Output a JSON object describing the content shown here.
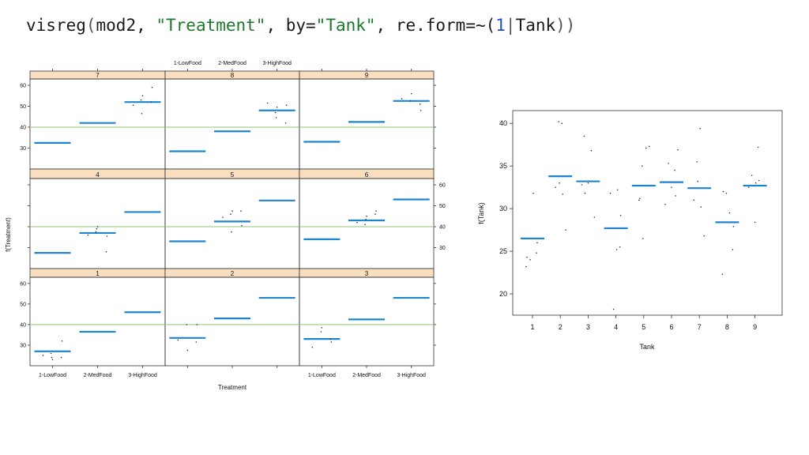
{
  "code": {
    "fn": "visreg",
    "open": "(",
    "arg1": "mod2, ",
    "str1": "\"Treatment\"",
    "sep1": ", by=",
    "str2": "\"Tank\"",
    "sep2": ", re.form=~(",
    "num1": "1",
    "bar": "|",
    "term": "Tank",
    "close": "))"
  },
  "colors": {
    "fit_line": "#1f84cf",
    "points": "#333333",
    "ref_line": "#a9cf8f",
    "strip_bg": "#f9dfc0",
    "frame": "#333333"
  },
  "chart_data": [
    {
      "type": "line",
      "layout": "trellis 3x3",
      "xlabel": "Treatment",
      "ylabel": "f(Treatment)",
      "categories": [
        "1-LowFood",
        "2-MedFood",
        "3-HighFood"
      ],
      "ylim": [
        20,
        63
      ],
      "yticks": [
        30,
        40,
        50,
        60
      ],
      "reference_line": 40,
      "panels": [
        {
          "tank": "7",
          "fit": [
            32.5,
            42,
            52
          ],
          "points": [
            [
              2,
              50.5
            ],
            [
              2,
              55
            ],
            [
              2,
              59
            ],
            [
              2,
              46.5
            ],
            [
              2,
              52
            ],
            [
              2,
              53
            ]
          ]
        },
        {
          "tank": "8",
          "fit": [
            28.5,
            38,
            48
          ],
          "points": [
            [
              2,
              51.5
            ],
            [
              2,
              49.5
            ],
            [
              2,
              50.5
            ],
            [
              2,
              44.5
            ],
            [
              2,
              42
            ],
            [
              2,
              47
            ]
          ]
        },
        {
          "tank": "9",
          "fit": [
            33,
            42.5,
            52.5
          ],
          "points": [
            [
              2,
              53.5
            ],
            [
              2,
              56
            ],
            [
              2,
              48
            ],
            [
              2,
              52.5
            ],
            [
              2,
              51
            ]
          ]
        },
        {
          "tank": "4",
          "fit": [
            27.5,
            37,
            47
          ],
          "points": [
            [
              1,
              36
            ],
            [
              1,
              40
            ],
            [
              1,
              35.5
            ],
            [
              1,
              39
            ],
            [
              1,
              28
            ],
            [
              1,
              37.5
            ]
          ]
        },
        {
          "tank": "5",
          "fit": [
            33,
            42.5,
            52.5
          ],
          "points": [
            [
              1,
              44.5
            ],
            [
              1,
              47.5
            ],
            [
              1,
              40.5
            ],
            [
              1,
              37.5
            ],
            [
              1,
              47.5
            ],
            [
              1,
              46
            ]
          ]
        },
        {
          "tank": "6",
          "fit": [
            34,
            43,
            53
          ],
          "points": [
            [
              1,
              42
            ],
            [
              1,
              45
            ],
            [
              1,
              47.5
            ],
            [
              1,
              43.5
            ],
            [
              1,
              46
            ],
            [
              1,
              41
            ]
          ]
        },
        {
          "tank": "1",
          "fit": [
            27,
            36.5,
            46
          ],
          "points": [
            [
              0,
              25
            ],
            [
              0,
              23
            ],
            [
              0,
              32
            ],
            [
              0,
              24
            ],
            [
              0,
              24
            ],
            [
              0,
              26
            ]
          ]
        },
        {
          "tank": "2",
          "fit": [
            33.5,
            43,
            53
          ],
          "points": [
            [
              0,
              32.5
            ],
            [
              0,
              27.5
            ],
            [
              0,
              40
            ],
            [
              0,
              40
            ],
            [
              0,
              31.5
            ]
          ]
        },
        {
          "tank": "3",
          "fit": [
            33,
            42.5,
            53
          ],
          "points": [
            [
              0,
              29
            ],
            [
              0,
              38.5
            ],
            [
              0,
              31.5
            ],
            [
              0,
              36.5
            ],
            [
              0,
              33
            ]
          ]
        }
      ]
    },
    {
      "type": "scatter",
      "xlabel": "Tank",
      "ylabel": "f(Tank)",
      "categories": [
        "1",
        "2",
        "3",
        "4",
        "5",
        "6",
        "7",
        "8",
        "9"
      ],
      "ylim": [
        17.5,
        41.5
      ],
      "yticks": [
        20,
        25,
        30,
        35,
        40
      ],
      "fit": [
        26.5,
        33.8,
        33.2,
        27.7,
        32.7,
        33.1,
        32.4,
        28.4,
        32.7
      ],
      "points": [
        [
          1,
          23.2
        ],
        [
          1,
          24.8
        ],
        [
          1,
          31.8
        ],
        [
          1,
          24.0
        ],
        [
          1,
          24.3
        ],
        [
          1,
          26.0
        ],
        [
          2,
          40.0
        ],
        [
          2,
          40.2
        ],
        [
          2,
          32.5
        ],
        [
          2,
          27.5
        ],
        [
          2,
          31.7
        ],
        [
          2,
          33.0
        ],
        [
          3,
          38.5
        ],
        [
          3,
          29.0
        ],
        [
          3,
          36.8
        ],
        [
          3,
          33.0
        ],
        [
          3,
          31.8
        ],
        [
          3,
          32.8
        ],
        [
          4,
          25.5
        ],
        [
          4,
          25.2
        ],
        [
          4,
          18.2
        ],
        [
          4,
          31.8
        ],
        [
          4,
          29.2
        ],
        [
          4,
          32.2
        ],
        [
          5,
          35.0
        ],
        [
          5,
          31.0
        ],
        [
          5,
          37.3
        ],
        [
          5,
          37.1
        ],
        [
          5,
          26.5
        ],
        [
          5,
          31.2
        ],
        [
          6,
          36.9
        ],
        [
          6,
          34.5
        ],
        [
          6,
          32.5
        ],
        [
          6,
          35.3
        ],
        [
          6,
          30.5
        ],
        [
          6,
          31.5
        ],
        [
          7,
          39.4
        ],
        [
          7,
          35.5
        ],
        [
          7,
          31.0
        ],
        [
          7,
          26.8
        ],
        [
          7,
          30.2
        ],
        [
          7,
          33.2
        ],
        [
          8,
          22.3
        ],
        [
          8,
          25.2
        ],
        [
          8,
          29.5
        ],
        [
          8,
          31.8
        ],
        [
          8,
          32.0
        ],
        [
          8,
          27.9
        ],
        [
          9,
          37.2
        ],
        [
          9,
          28.4
        ],
        [
          9,
          33.9
        ],
        [
          9,
          32.5
        ],
        [
          9,
          33.3
        ],
        [
          9,
          33.0
        ]
      ]
    }
  ]
}
